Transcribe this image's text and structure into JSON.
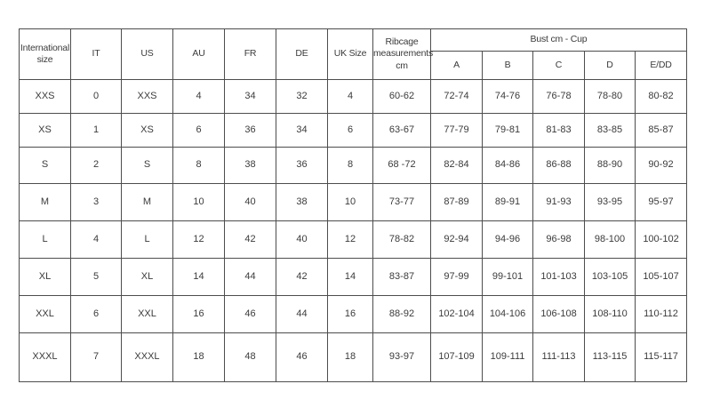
{
  "table": {
    "group_header": "Bust cm - Cup",
    "columns": [
      "International size",
      "IT",
      "US",
      "AU",
      "FR",
      "DE",
      "UK Size",
      "Ribcage measurements cm"
    ],
    "cup_columns": [
      "A",
      "B",
      "C",
      "D",
      "E/DD"
    ],
    "rows": [
      [
        "XXS",
        "0",
        "XXS",
        "4",
        "34",
        "32",
        "4",
        "60-62",
        "72-74",
        "74-76",
        "76-78",
        "78-80",
        "80-82"
      ],
      [
        "XS",
        "1",
        "XS",
        "6",
        "36",
        "34",
        "6",
        "63-67",
        "77-79",
        "79-81",
        "81-83",
        "83-85",
        "85-87"
      ],
      [
        "S",
        "2",
        "S",
        "8",
        "38",
        "36",
        "8",
        "68 -72",
        "82-84",
        "84-86",
        "86-88",
        "88-90",
        "90-92"
      ],
      [
        "M",
        "3",
        "M",
        "10",
        "40",
        "38",
        "10",
        "73-77",
        "87-89",
        "89-91",
        "91-93",
        "93-95",
        "95-97"
      ],
      [
        "L",
        "4",
        "L",
        "12",
        "42",
        "40",
        "12",
        "78-82",
        "92-94",
        "94-96",
        "96-98",
        "98-100",
        "100-102"
      ],
      [
        "XL",
        "5",
        "XL",
        "14",
        "44",
        "42",
        "14",
        "83-87",
        "97-99",
        "99-101",
        "101-103",
        "103-105",
        "105-107"
      ],
      [
        "XXL",
        "6",
        "XXL",
        "16",
        "46",
        "44",
        "16",
        "88-92",
        "102-104",
        "104-106",
        "106-108",
        "108-110",
        "110-112"
      ],
      [
        "XXXL",
        "7",
        "XXXL",
        "18",
        "48",
        "46",
        "18",
        "93-97",
        "107-109",
        "109-111",
        "111-113",
        "113-115",
        "115-117"
      ]
    ],
    "colors": {
      "border": "#4d4d4d",
      "text": "#3b3b3b",
      "background": "#ffffff"
    }
  }
}
